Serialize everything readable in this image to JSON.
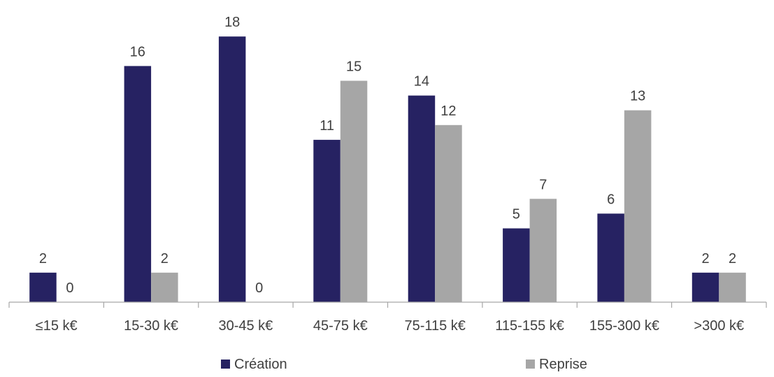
{
  "chart_data": {
    "type": "bar",
    "title": "",
    "xlabel": "",
    "ylabel": "",
    "categories": [
      "≤15 k€",
      "15-30 k€",
      "30-45 k€",
      "45-75 k€",
      "75-115 k€",
      "115-155 k€",
      "155-300 k€",
      ">300 k€"
    ],
    "series": [
      {
        "name": "Création",
        "values": [
          2,
          16,
          18,
          11,
          14,
          5,
          6,
          2
        ],
        "color": "#262262"
      },
      {
        "name": "Reprise",
        "values": [
          0,
          2,
          0,
          15,
          12,
          7,
          13,
          2
        ],
        "color": "#a6a6a6"
      }
    ],
    "ylim": [
      0,
      20
    ],
    "grid": false,
    "data_labels": true,
    "legend_position": "bottom",
    "axis_color": "#a6a6a6",
    "label_color": "#404040"
  }
}
